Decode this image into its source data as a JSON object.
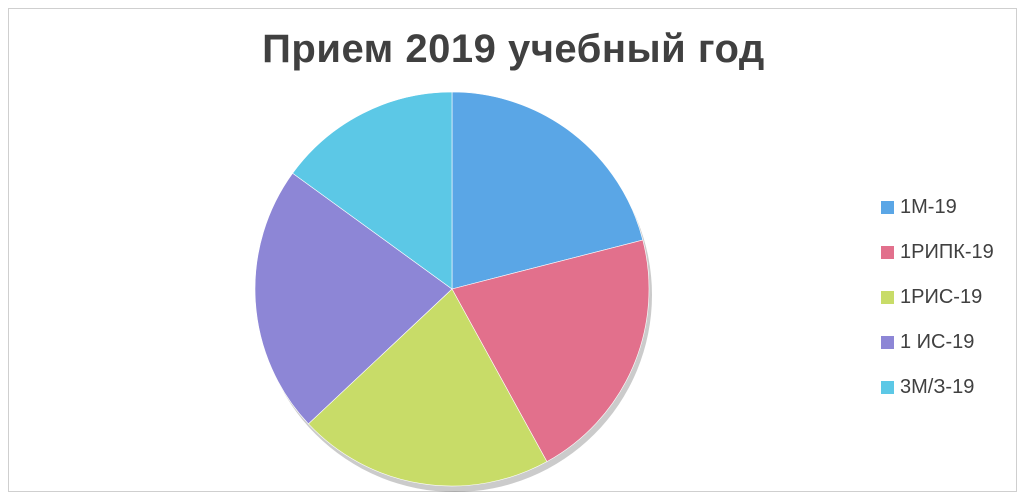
{
  "chart_data": {
    "type": "pie",
    "title": "Прием 2019 учебный год",
    "categories": [
      "1М-19",
      "1РИПК-19",
      "1РИС-19",
      "1 ИС-19",
      "3М/З-19"
    ],
    "values": [
      21,
      21,
      21,
      22,
      15
    ],
    "colors": [
      "#5aa6e6",
      "#e2708c",
      "#c8dc68",
      "#8d86d6",
      "#5cc8e6"
    ],
    "legend_position": "right",
    "start_angle_deg": 0,
    "direction": "clockwise"
  }
}
